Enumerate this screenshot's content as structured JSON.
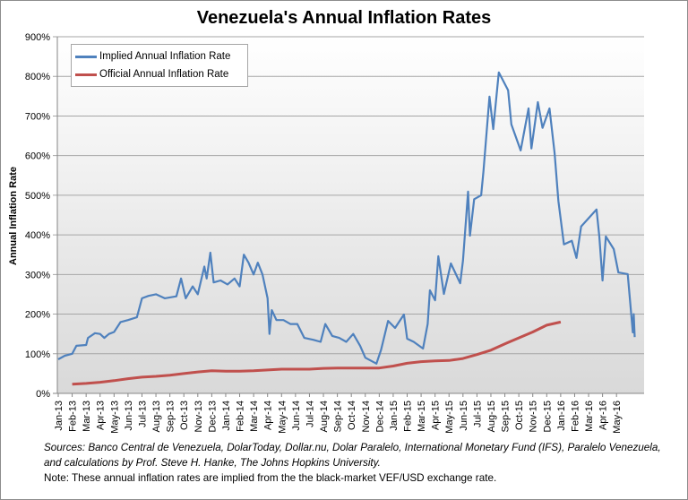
{
  "chart_data": {
    "type": "line",
    "title": "Venezuela's Annual Inflation Rates",
    "ylabel": "Annual Inflation Rate",
    "xlabel": "",
    "ylim": [
      0,
      900
    ],
    "xlim": [
      "2013-01-01",
      "2016-06-01"
    ],
    "grid": true,
    "legend_position": "top-left",
    "y_ticks": [
      "0%",
      "100%",
      "200%",
      "300%",
      "400%",
      "500%",
      "600%",
      "700%",
      "800%",
      "900%"
    ],
    "x_ticks": [
      "Jan-13",
      "Feb-13",
      "Mar-13",
      "Apr-13",
      "May-13",
      "Jun-13",
      "Jul-13",
      "Aug-13",
      "Sep-13",
      "Oct-13",
      "Nov-13",
      "Dec-13",
      "Jan-14",
      "Feb-14",
      "Mar-14",
      "Apr-14",
      "May-14",
      "Jun-14",
      "Jul-14",
      "Aug-14",
      "Sep-14",
      "Oct-14",
      "Nov-14",
      "Dec-14",
      "Jan-15",
      "Feb-15",
      "Mar-15",
      "Apr-15",
      "May-15",
      "Jun-15",
      "Jul-15",
      "Aug-15",
      "Sep-15",
      "Oct-15",
      "Nov-15",
      "Dec-15",
      "Jan-16",
      "Feb-16",
      "Mar-16",
      "Apr-16",
      "May-16"
    ],
    "series": [
      {
        "name": "Implied Annual Inflation Rate",
        "color": "#4f81bd",
        "points": [
          [
            "2013-01-01",
            86
          ],
          [
            "2013-01-15",
            95
          ],
          [
            "2013-02-01",
            100
          ],
          [
            "2013-02-10",
            120
          ],
          [
            "2013-03-01",
            122
          ],
          [
            "2013-03-05",
            140
          ],
          [
            "2013-03-20",
            152
          ],
          [
            "2013-04-01",
            150
          ],
          [
            "2013-04-10",
            140
          ],
          [
            "2013-04-20",
            150
          ],
          [
            "2013-05-01",
            155
          ],
          [
            "2013-05-15",
            180
          ],
          [
            "2013-06-01",
            185
          ],
          [
            "2013-06-20",
            192
          ],
          [
            "2013-07-01",
            240
          ],
          [
            "2013-07-15",
            246
          ],
          [
            "2013-08-01",
            250
          ],
          [
            "2013-08-20",
            240
          ],
          [
            "2013-09-15",
            245
          ],
          [
            "2013-09-25",
            290
          ],
          [
            "2013-10-05",
            240
          ],
          [
            "2013-10-20",
            270
          ],
          [
            "2013-11-01",
            250
          ],
          [
            "2013-11-15",
            320
          ],
          [
            "2013-11-20",
            290
          ],
          [
            "2013-11-28",
            355
          ],
          [
            "2013-12-05",
            280
          ],
          [
            "2013-12-20",
            285
          ],
          [
            "2014-01-05",
            275
          ],
          [
            "2014-01-20",
            290
          ],
          [
            "2014-02-01",
            270
          ],
          [
            "2014-02-10",
            350
          ],
          [
            "2014-02-20",
            330
          ],
          [
            "2014-03-01",
            300
          ],
          [
            "2014-03-10",
            330
          ],
          [
            "2014-03-20",
            300
          ],
          [
            "2014-04-01",
            240
          ],
          [
            "2014-04-05",
            150
          ],
          [
            "2014-04-10",
            210
          ],
          [
            "2014-04-20",
            185
          ],
          [
            "2014-05-05",
            185
          ],
          [
            "2014-05-20",
            175
          ],
          [
            "2014-06-05",
            175
          ],
          [
            "2014-06-20",
            140
          ],
          [
            "2014-07-10",
            135
          ],
          [
            "2014-07-25",
            130
          ],
          [
            "2014-08-05",
            175
          ],
          [
            "2014-08-20",
            145
          ],
          [
            "2014-09-05",
            140
          ],
          [
            "2014-09-20",
            130
          ],
          [
            "2014-10-05",
            150
          ],
          [
            "2014-10-20",
            120
          ],
          [
            "2014-11-01",
            90
          ],
          [
            "2014-11-25",
            75
          ],
          [
            "2014-12-05",
            110
          ],
          [
            "2014-12-20",
            183
          ],
          [
            "2015-01-05",
            165
          ],
          [
            "2015-01-24",
            199
          ],
          [
            "2015-02-01",
            138
          ],
          [
            "2015-02-15",
            130
          ],
          [
            "2015-03-05",
            113
          ],
          [
            "2015-03-15",
            175
          ],
          [
            "2015-03-20",
            260
          ],
          [
            "2015-04-01",
            235
          ],
          [
            "2015-04-08",
            346
          ],
          [
            "2015-04-20",
            251
          ],
          [
            "2015-05-05",
            328
          ],
          [
            "2015-05-25",
            278
          ],
          [
            "2015-06-01",
            335
          ],
          [
            "2015-06-12",
            509
          ],
          [
            "2015-06-16",
            398
          ],
          [
            "2015-06-25",
            490
          ],
          [
            "2015-07-10",
            500
          ],
          [
            "2015-07-15",
            561
          ],
          [
            "2015-07-28",
            749
          ],
          [
            "2015-08-06",
            667
          ],
          [
            "2015-08-18",
            810
          ],
          [
            "2015-09-08",
            765
          ],
          [
            "2015-09-15",
            679
          ],
          [
            "2015-10-05",
            613
          ],
          [
            "2015-10-22",
            719
          ],
          [
            "2015-10-28",
            618
          ],
          [
            "2015-11-12",
            735
          ],
          [
            "2015-11-22",
            670
          ],
          [
            "2015-12-07",
            719
          ],
          [
            "2015-12-18",
            606
          ],
          [
            "2015-12-26",
            486
          ],
          [
            "2016-01-08",
            376
          ],
          [
            "2016-01-25",
            385
          ],
          [
            "2016-02-05",
            342
          ],
          [
            "2016-02-15",
            421
          ],
          [
            "2016-03-18",
            464
          ],
          [
            "2016-03-24",
            396
          ],
          [
            "2016-04-01",
            285
          ],
          [
            "2016-04-08",
            396
          ],
          [
            "2016-04-25",
            364
          ],
          [
            "2016-05-05",
            305
          ],
          [
            "2016-05-25",
            301
          ],
          [
            "2016-06-06",
            154
          ],
          [
            "2016-06-08",
            200
          ],
          [
            "2016-06-10",
            142
          ]
        ]
      },
      {
        "name": "Official Annual Inflation Rate",
        "color": "#c0504d",
        "points": [
          [
            "2013-02-01",
            23
          ],
          [
            "2013-03-01",
            25
          ],
          [
            "2013-04-01",
            28
          ],
          [
            "2013-05-01",
            32
          ],
          [
            "2013-06-01",
            37
          ],
          [
            "2013-07-01",
            41
          ],
          [
            "2013-08-01",
            43
          ],
          [
            "2013-09-01",
            46
          ],
          [
            "2013-10-01",
            50
          ],
          [
            "2013-11-01",
            54
          ],
          [
            "2013-12-01",
            57
          ],
          [
            "2014-01-01",
            56
          ],
          [
            "2014-02-01",
            56
          ],
          [
            "2014-03-01",
            57
          ],
          [
            "2014-04-01",
            59
          ],
          [
            "2014-05-01",
            61
          ],
          [
            "2014-06-01",
            61
          ],
          [
            "2014-07-01",
            61
          ],
          [
            "2014-08-01",
            63
          ],
          [
            "2014-09-01",
            64
          ],
          [
            "2014-10-01",
            64
          ],
          [
            "2014-11-01",
            64
          ],
          [
            "2014-12-01",
            64
          ],
          [
            "2015-01-01",
            69
          ],
          [
            "2015-02-01",
            76
          ],
          [
            "2015-03-01",
            80
          ],
          [
            "2015-04-01",
            82
          ],
          [
            "2015-05-01",
            83
          ],
          [
            "2015-06-01",
            88
          ],
          [
            "2015-07-01",
            98
          ],
          [
            "2015-08-01",
            109
          ],
          [
            "2015-09-01",
            125
          ],
          [
            "2015-10-01",
            140
          ],
          [
            "2015-11-01",
            155
          ],
          [
            "2015-12-01",
            172
          ],
          [
            "2016-01-01",
            180
          ]
        ]
      }
    ]
  },
  "notes": {
    "sources": "Sources: Banco Central de Venezuela, DolarToday, Dollar.nu, Dolar Paralelo, International Monetary Fund (IFS), Paralelo Venezuela, and calculations by Prof. Steve H. Hanke, The Johns Hopkins University.",
    "note": "Note: These annual inflation rates are implied from the the black-market VEF/USD exchange rate."
  }
}
